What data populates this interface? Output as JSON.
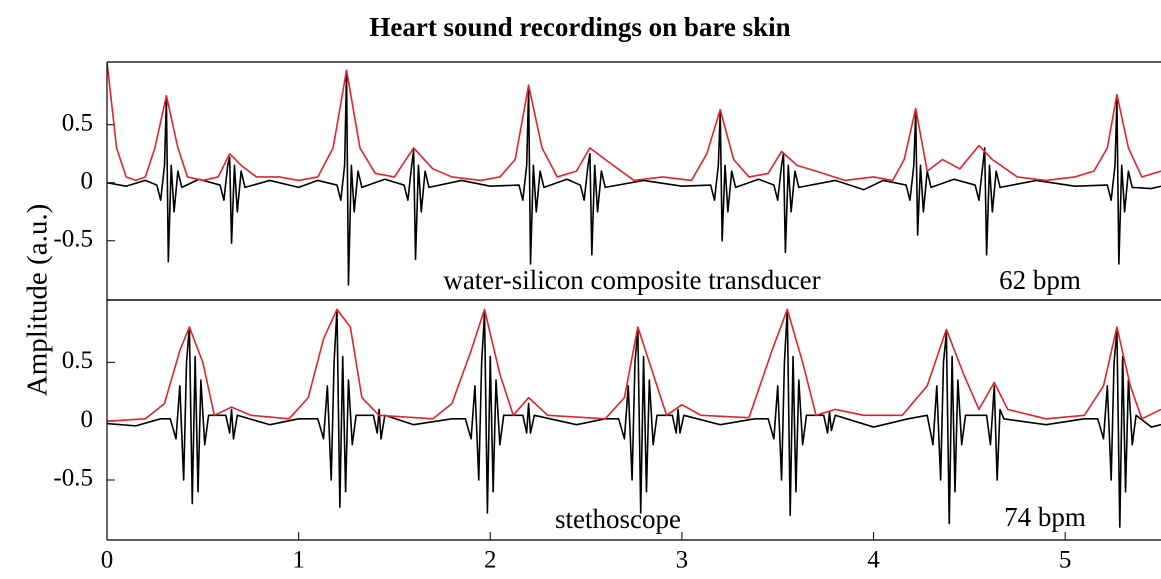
{
  "title": "Heart sound recordings on bare skin",
  "y_label": "Amplitude (a.u.)",
  "chart_data": [
    {
      "type": "line",
      "annotations": [
        "water-silicon composite transducer",
        "62 bpm"
      ],
      "xlim": [
        0,
        5.5
      ],
      "ylim": [
        -1.01,
        1.04
      ],
      "yticks": [
        -0.5,
        0,
        0.5
      ],
      "series": [
        {
          "color": "#000000",
          "x": [
            0,
            0.1,
            0.2,
            0.26,
            0.28,
            0.3,
            0.31,
            0.32,
            0.335,
            0.35,
            0.37,
            0.39,
            0.48,
            0.59,
            0.61,
            0.63,
            0.64,
            0.65,
            0.665,
            0.68,
            0.7,
            0.72,
            0.85,
            1.0,
            1.1,
            1.2,
            1.22,
            1.24,
            1.25,
            1.26,
            1.275,
            1.29,
            1.31,
            1.33,
            1.45,
            1.55,
            1.57,
            1.59,
            1.6,
            1.61,
            1.625,
            1.64,
            1.66,
            1.68,
            1.85,
            2.0,
            2.15,
            2.17,
            2.19,
            2.2,
            2.21,
            2.225,
            2.24,
            2.26,
            2.28,
            2.4,
            2.47,
            2.49,
            2.51,
            2.52,
            2.53,
            2.545,
            2.56,
            2.58,
            2.6,
            2.8,
            3.0,
            3.15,
            3.17,
            3.19,
            3.2,
            3.21,
            3.225,
            3.24,
            3.26,
            3.28,
            3.4,
            3.48,
            3.5,
            3.52,
            3.53,
            3.54,
            3.555,
            3.57,
            3.59,
            3.61,
            3.8,
            3.95,
            4.05,
            4.17,
            4.19,
            4.21,
            4.22,
            4.23,
            4.245,
            4.26,
            4.28,
            4.3,
            4.42,
            4.53,
            4.55,
            4.57,
            4.58,
            4.59,
            4.605,
            4.62,
            4.64,
            4.66,
            4.85,
            5.05,
            5.22,
            5.24,
            5.26,
            5.27,
            5.28,
            5.295,
            5.31,
            5.33,
            5.35,
            5.45,
            5.5
          ],
          "values": [
            0,
            -0.03,
            0.02,
            -0.02,
            -0.15,
            0.15,
            0.72,
            -0.68,
            0.15,
            -0.25,
            0.1,
            -0.04,
            0.03,
            -0.02,
            -0.15,
            0.15,
            0.22,
            -0.52,
            0.15,
            -0.25,
            0.1,
            -0.04,
            0.02,
            -0.04,
            0.02,
            -0.02,
            -0.15,
            0.15,
            0.95,
            -0.88,
            0.15,
            -0.25,
            0.1,
            -0.04,
            0.03,
            -0.02,
            -0.15,
            0.15,
            0.28,
            -0.66,
            0.15,
            -0.25,
            0.1,
            -0.04,
            0.02,
            -0.03,
            -0.02,
            -0.15,
            0.15,
            0.8,
            -0.7,
            0.15,
            -0.25,
            0.1,
            -0.04,
            0.03,
            -0.02,
            -0.15,
            0.15,
            0.25,
            -0.62,
            0.15,
            -0.25,
            0.1,
            -0.04,
            0.02,
            -0.03,
            -0.02,
            -0.15,
            0.15,
            0.6,
            -0.5,
            0.15,
            -0.25,
            0.1,
            -0.04,
            0.03,
            -0.02,
            -0.15,
            0.15,
            0.25,
            -0.6,
            0.15,
            -0.25,
            0.1,
            -0.04,
            0.02,
            -0.06,
            0.02,
            -0.02,
            -0.15,
            0.15,
            0.6,
            -0.45,
            0.15,
            -0.25,
            0.1,
            -0.04,
            0.03,
            -0.02,
            -0.15,
            0.15,
            0.3,
            -0.62,
            0.15,
            -0.25,
            0.1,
            -0.04,
            0.02,
            -0.03,
            -0.02,
            -0.15,
            0.15,
            0.72,
            -0.7,
            0.15,
            -0.25,
            0.1,
            -0.04,
            -0.05,
            -0.03
          ]
        },
        {
          "color": "#e8202a",
          "x": [
            0,
            0.05,
            0.1,
            0.15,
            0.2,
            0.25,
            0.31,
            0.37,
            0.42,
            0.5,
            0.58,
            0.64,
            0.7,
            0.78,
            0.9,
            1.0,
            1.1,
            1.18,
            1.25,
            1.32,
            1.4,
            1.5,
            1.6,
            1.7,
            1.8,
            1.95,
            2.05,
            2.13,
            2.2,
            2.27,
            2.35,
            2.45,
            2.52,
            2.6,
            2.75,
            2.9,
            3.05,
            3.13,
            3.2,
            3.27,
            3.35,
            3.45,
            3.52,
            3.6,
            3.7,
            3.85,
            4.0,
            4.1,
            4.16,
            4.22,
            4.28,
            4.36,
            4.45,
            4.55,
            4.62,
            4.75,
            4.9,
            5.05,
            5.15,
            5.22,
            5.27,
            5.33,
            5.4,
            5.5
          ],
          "values": [
            1.04,
            0.3,
            0.05,
            0.02,
            0.05,
            0.3,
            0.75,
            0.3,
            0.05,
            0.02,
            0.05,
            0.25,
            0.15,
            0.05,
            0.05,
            0.02,
            0.05,
            0.3,
            0.97,
            0.3,
            0.08,
            0.05,
            0.3,
            0.12,
            0.05,
            0.02,
            0.05,
            0.2,
            0.84,
            0.3,
            0.05,
            0.1,
            0.3,
            0.2,
            0.02,
            0.05,
            0.02,
            0.25,
            0.63,
            0.2,
            0.05,
            0.08,
            0.27,
            0.15,
            0.1,
            0.02,
            0.05,
            0.02,
            0.2,
            0.64,
            0.1,
            0.2,
            0.12,
            0.32,
            0.2,
            0.05,
            0.02,
            0.05,
            0.1,
            0.3,
            0.76,
            0.3,
            0.05,
            0.1
          ]
        }
      ]
    },
    {
      "type": "line",
      "annotations": [
        "stethoscope",
        "74 bpm"
      ],
      "xlim": [
        0,
        5.5
      ],
      "ylim": [
        -1.01,
        1.03
      ],
      "yticks": [
        -0.5,
        0,
        0.5
      ],
      "xticks": [
        0,
        1,
        2,
        3,
        4,
        5
      ],
      "series": [
        {
          "color": "#000000",
          "x": [
            0,
            0.15,
            0.28,
            0.33,
            0.36,
            0.38,
            0.4,
            0.415,
            0.43,
            0.445,
            0.46,
            0.475,
            0.49,
            0.51,
            0.53,
            0.62,
            0.64,
            0.65,
            0.66,
            0.68,
            0.85,
            1.0,
            1.1,
            1.13,
            1.15,
            1.17,
            1.185,
            1.2,
            1.215,
            1.23,
            1.245,
            1.26,
            1.28,
            1.3,
            1.39,
            1.41,
            1.42,
            1.43,
            1.45,
            1.6,
            1.8,
            1.87,
            1.9,
            1.92,
            1.94,
            1.955,
            1.97,
            1.985,
            2.0,
            2.015,
            2.03,
            2.05,
            2.07,
            2.17,
            2.19,
            2.2,
            2.21,
            2.23,
            2.45,
            2.6,
            2.67,
            2.7,
            2.72,
            2.74,
            2.755,
            2.77,
            2.785,
            2.8,
            2.815,
            2.83,
            2.85,
            2.87,
            2.95,
            2.97,
            2.98,
            2.99,
            3.01,
            3.2,
            3.38,
            3.45,
            3.48,
            3.5,
            3.52,
            3.535,
            3.55,
            3.565,
            3.58,
            3.595,
            3.61,
            3.63,
            3.65,
            3.74,
            3.76,
            3.77,
            3.78,
            3.8,
            4.0,
            4.18,
            4.28,
            4.31,
            4.33,
            4.35,
            4.365,
            4.38,
            4.395,
            4.41,
            4.425,
            4.44,
            4.46,
            4.48,
            4.59,
            4.61,
            4.63,
            4.645,
            4.66,
            4.68,
            4.9,
            5.1,
            5.17,
            5.2,
            5.22,
            5.24,
            5.255,
            5.27,
            5.285,
            5.3,
            5.315,
            5.33,
            5.35,
            5.37,
            5.45,
            5.5
          ],
          "values": [
            -0.02,
            -0.04,
            0.02,
            0.02,
            -0.15,
            0.3,
            -0.5,
            0.5,
            0.8,
            -0.7,
            0.55,
            -0.6,
            0.35,
            -0.2,
            0.05,
            0.05,
            -0.1,
            0.1,
            -0.15,
            0.05,
            -0.03,
            0.02,
            0.02,
            -0.15,
            0.3,
            -0.5,
            0.5,
            0.95,
            -0.73,
            0.55,
            -0.6,
            0.35,
            -0.2,
            0.05,
            0.05,
            -0.1,
            0.1,
            -0.15,
            0.05,
            -0.03,
            0.02,
            0.02,
            -0.15,
            0.3,
            -0.5,
            0.5,
            0.92,
            -0.78,
            0.55,
            -0.6,
            0.35,
            -0.2,
            0.05,
            0.05,
            -0.1,
            0.15,
            -0.1,
            0.05,
            -0.03,
            0.02,
            0.02,
            -0.15,
            0.3,
            -0.5,
            0.5,
            0.78,
            -0.78,
            0.55,
            -0.6,
            0.35,
            -0.2,
            0.05,
            0.05,
            -0.1,
            0.1,
            -0.1,
            0.05,
            -0.03,
            0.02,
            0.02,
            -0.15,
            0.3,
            -0.5,
            0.5,
            0.95,
            -0.8,
            0.55,
            -0.6,
            0.35,
            -0.2,
            0.05,
            0.05,
            -0.1,
            0.08,
            -0.08,
            0.05,
            -0.05,
            0.02,
            0.05,
            -0.2,
            0.3,
            -0.5,
            0.5,
            0.75,
            -0.87,
            0.55,
            -0.6,
            0.35,
            -0.2,
            0.05,
            0.05,
            -0.2,
            0.3,
            -0.5,
            0.1,
            0.02,
            -0.03,
            0.02,
            0.02,
            -0.15,
            0.3,
            -0.5,
            0.5,
            0.77,
            -0.9,
            0.55,
            -0.6,
            0.35,
            -0.2,
            0.05,
            -0.05,
            -0.03
          ]
        },
        {
          "color": "#e8202a",
          "x": [
            0,
            0.2,
            0.3,
            0.38,
            0.43,
            0.5,
            0.56,
            0.65,
            0.75,
            0.95,
            1.05,
            1.13,
            1.2,
            1.27,
            1.33,
            1.42,
            1.7,
            1.8,
            1.9,
            1.97,
            2.05,
            2.12,
            2.2,
            2.3,
            2.6,
            2.7,
            2.77,
            2.85,
            2.92,
            3.0,
            3.1,
            3.35,
            3.47,
            3.55,
            3.63,
            3.7,
            3.8,
            3.95,
            4.15,
            4.28,
            4.38,
            4.47,
            4.55,
            4.63,
            4.7,
            4.9,
            5.1,
            5.2,
            5.27,
            5.34,
            5.4,
            5.5
          ],
          "values": [
            0,
            0.02,
            0.15,
            0.6,
            0.8,
            0.5,
            0.05,
            0.12,
            0.05,
            0.02,
            0.2,
            0.7,
            0.95,
            0.8,
            0.2,
            0.05,
            0.02,
            0.15,
            0.6,
            0.95,
            0.4,
            0.05,
            0.2,
            0.05,
            0.02,
            0.2,
            0.8,
            0.4,
            0.05,
            0.14,
            0.05,
            0.03,
            0.6,
            0.95,
            0.5,
            0.05,
            0.1,
            0.05,
            0.05,
            0.3,
            0.78,
            0.4,
            0.1,
            0.33,
            0.1,
            0.02,
            0.05,
            0.3,
            0.8,
            0.3,
            0.02,
            0.1
          ]
        }
      ]
    }
  ]
}
